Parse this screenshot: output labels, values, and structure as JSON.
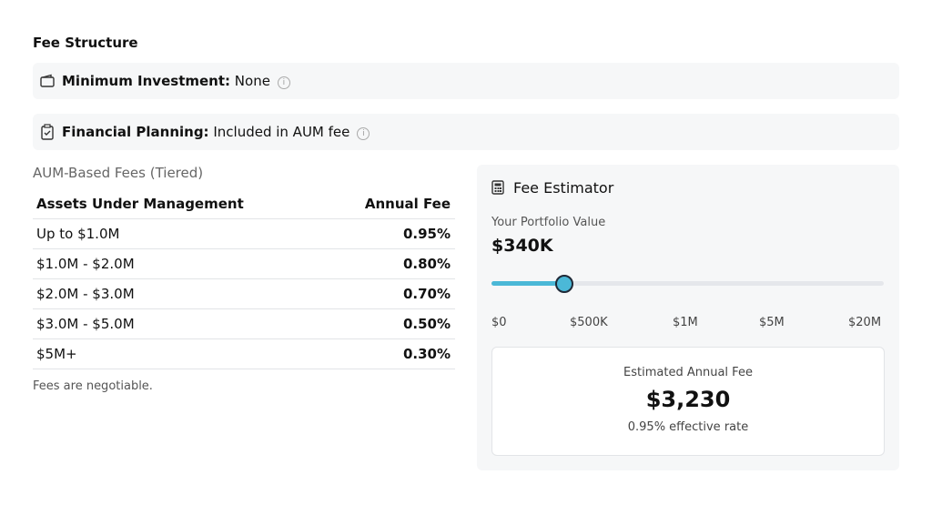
{
  "header": {
    "title": "Fee Structure"
  },
  "info": [
    {
      "label": "Minimum Investment:",
      "value": "None"
    },
    {
      "label": "Financial Planning:",
      "value": "Included in AUM fee"
    }
  ],
  "table": {
    "caption": "AUM-Based Fees (Tiered)",
    "columns": [
      "Assets Under Management",
      "Annual Fee"
    ],
    "rows": [
      [
        "Up to $1.0M",
        "0.95%"
      ],
      [
        "$1.0M - $2.0M",
        "0.80%"
      ],
      [
        "$2.0M - $3.0M",
        "0.70%"
      ],
      [
        "$3.0M - $5.0M",
        "0.50%"
      ],
      [
        "$5M+",
        "0.30%"
      ]
    ],
    "note": "Fees are negotiable."
  },
  "estimator": {
    "title": "Fee Estimator",
    "portfolio_label": "Your Portfolio Value",
    "portfolio_value": "$340K",
    "slider_labels": [
      "$0",
      "$500K",
      "$1M",
      "$5M",
      "$20M"
    ],
    "result_label": "Estimated Annual Fee",
    "result_value": "$3,230",
    "result_note": "0.95% effective rate"
  }
}
